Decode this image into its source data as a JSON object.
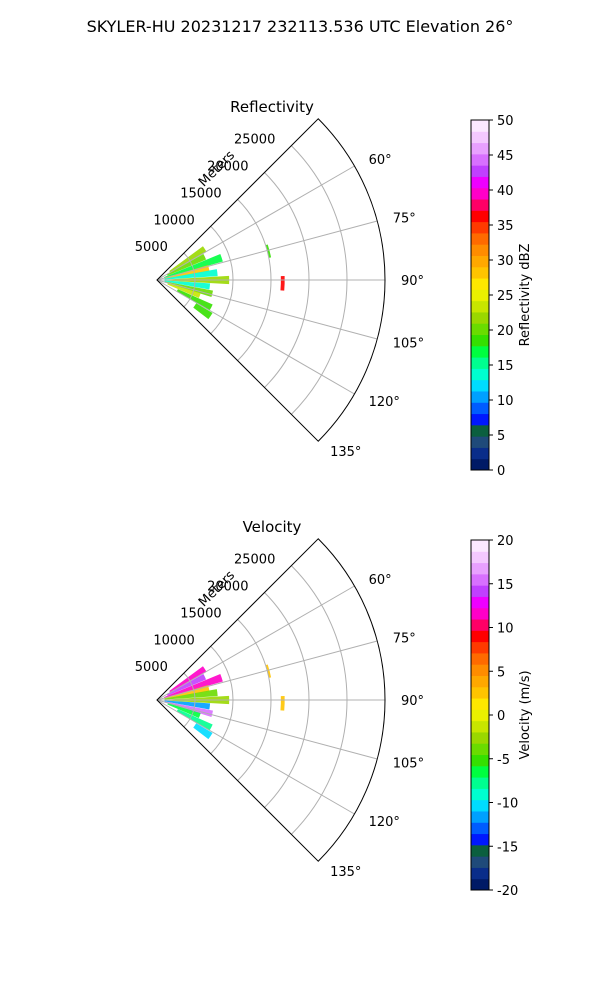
{
  "figure": {
    "suptitle": "SKYLER-HU  20231217  232113.536 UTC Elevation 26°"
  },
  "chart_data": [
    {
      "type": "polar-sector",
      "title": "Reflectivity",
      "range_label": "Meters",
      "range_ticks": [
        5000,
        10000,
        15000,
        20000,
        25000
      ],
      "angle_ticks": [
        "60°",
        "75°",
        "90°",
        "105°",
        "120°",
        "135°"
      ],
      "angle_tick_values": [
        60,
        75,
        90,
        105,
        120,
        135
      ],
      "sector_deg": [
        45,
        135
      ],
      "rmax_m": 30000,
      "grid": true,
      "colorbar": {
        "label": "Reflectivity dBZ",
        "min": 0,
        "max": 50,
        "ticks": [
          "0",
          "5",
          "10",
          "15",
          "20",
          "25",
          "30",
          "35",
          "40",
          "45",
          "50"
        ],
        "colors": [
          "#001a66",
          "#0a2d8a",
          "#1f4a7a",
          "#0b5f3f",
          "#0018ff",
          "#005cff",
          "#00a0ff",
          "#00dcff",
          "#00ffd0",
          "#00ff90",
          "#00ff3f",
          "#35e000",
          "#6adc00",
          "#9ad800",
          "#c8e600",
          "#eaf000",
          "#ffe800",
          "#ffc400",
          "#ffa800",
          "#ff8c00",
          "#ff6a00",
          "#ff3a00",
          "#ff0000",
          "#ff0066",
          "#ff00c8",
          "#ee00ff",
          "#c040ff",
          "#d870ff",
          "#e8a0ff",
          "#f4c8ff",
          "#fbe8ff"
        ]
      },
      "echoes": [
        {
          "az": 57,
          "r_km": [
            2,
            7.5
          ],
          "value": 22
        },
        {
          "az": 64,
          "r_km": [
            1.5,
            7
          ],
          "value": 20
        },
        {
          "az": 71,
          "r_km": [
            1,
            9
          ],
          "value": 17
        },
        {
          "az": 77,
          "r_km": [
            1,
            7
          ],
          "value": 28
        },
        {
          "az": 83,
          "r_km": [
            1,
            8
          ],
          "value": 14
        },
        {
          "az": 90,
          "r_km": [
            1,
            9.5
          ],
          "value": 21
        },
        {
          "az": 97,
          "r_km": [
            1,
            7
          ],
          "value": 13
        },
        {
          "az": 104,
          "r_km": [
            1,
            7.5
          ],
          "value": 20
        },
        {
          "az": 110,
          "r_km": [
            1.5,
            6
          ],
          "value": 24
        },
        {
          "az": 117,
          "r_km": [
            3,
            8
          ],
          "value": 18
        },
        {
          "az": 124,
          "r_km": [
            6,
            8.5
          ],
          "value": 19
        },
        {
          "az": 91.5,
          "r_km": [
            16.3,
            16.8
          ],
          "value": 37
        },
        {
          "az": 75.5,
          "r_km": [
            15,
            15.3
          ],
          "value": 19
        }
      ]
    },
    {
      "type": "polar-sector",
      "title": "Velocity",
      "range_label": "Meters",
      "range_ticks": [
        5000,
        10000,
        15000,
        20000,
        25000
      ],
      "angle_ticks": [
        "60°",
        "75°",
        "90°",
        "105°",
        "120°",
        "135°"
      ],
      "angle_tick_values": [
        60,
        75,
        90,
        105,
        120,
        135
      ],
      "sector_deg": [
        45,
        135
      ],
      "rmax_m": 30000,
      "grid": true,
      "colorbar": {
        "label": "Velocity (m/s)",
        "min": -20,
        "max": 20,
        "ticks": [
          "-20",
          "-15",
          "-10",
          "-5",
          "0",
          "5",
          "10",
          "15",
          "20"
        ],
        "colors": [
          "#001a66",
          "#0a2d8a",
          "#1f4a7a",
          "#0b5f3f",
          "#0018ff",
          "#005cff",
          "#00a0ff",
          "#00dcff",
          "#00ffd0",
          "#00ff90",
          "#00ff3f",
          "#35e000",
          "#6adc00",
          "#9ad800",
          "#c8e600",
          "#eaf000",
          "#ffe800",
          "#ffc400",
          "#ffa800",
          "#ff8c00",
          "#ff6a00",
          "#ff3a00",
          "#ff0000",
          "#ff0066",
          "#ff00c8",
          "#ee00ff",
          "#c040ff",
          "#d870ff",
          "#e8a0ff",
          "#f4c8ff",
          "#fbe8ff"
        ]
      },
      "echoes": [
        {
          "az": 57,
          "r_km": [
            2,
            7.5
          ],
          "value": 11
        },
        {
          "az": 64,
          "r_km": [
            1.5,
            7
          ],
          "value": 14
        },
        {
          "az": 71,
          "r_km": [
            1,
            9
          ],
          "value": 12
        },
        {
          "az": 77,
          "r_km": [
            1,
            7
          ],
          "value": 3
        },
        {
          "az": 83,
          "r_km": [
            1,
            8
          ],
          "value": -4
        },
        {
          "az": 90,
          "r_km": [
            1,
            9.5
          ],
          "value": -3
        },
        {
          "az": 97,
          "r_km": [
            1,
            7
          ],
          "value": -12
        },
        {
          "az": 104,
          "r_km": [
            1,
            7.5
          ],
          "value": 15
        },
        {
          "az": 110,
          "r_km": [
            1.5,
            6
          ],
          "value": -6
        },
        {
          "az": 117,
          "r_km": [
            3,
            8
          ],
          "value": -8
        },
        {
          "az": 124,
          "r_km": [
            6,
            8.5
          ],
          "value": -10
        },
        {
          "az": 91.5,
          "r_km": [
            16.3,
            16.8
          ],
          "value": 2
        },
        {
          "az": 75.5,
          "r_km": [
            15,
            15.3
          ],
          "value": 3
        }
      ]
    }
  ]
}
